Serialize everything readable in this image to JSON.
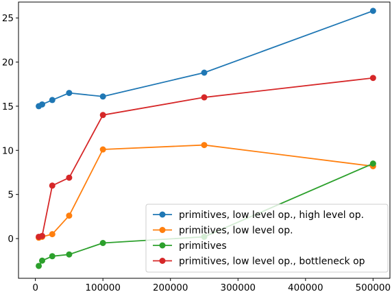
{
  "chart_data": {
    "type": "line",
    "title": "",
    "xlabel": "",
    "ylabel": "",
    "xlim": [
      -25000,
      525000
    ],
    "ylim": [
      -4.5,
      26.8
    ],
    "x_ticks": [
      0,
      100000,
      200000,
      300000,
      400000,
      500000
    ],
    "x_tick_labels": [
      "0",
      "100000",
      "200000",
      "300000",
      "400000",
      "500000"
    ],
    "y_ticks": [
      0,
      5,
      10,
      15,
      20,
      25
    ],
    "y_tick_labels": [
      "0",
      "5",
      "10",
      "15",
      "20",
      "25"
    ],
    "grid": false,
    "legend_position": "lower-right",
    "series": [
      {
        "name": "primitives, low level op., high level op.",
        "color": "#1f77b4",
        "x": [
          5000,
          10000,
          25000,
          50000,
          100000,
          250000,
          500000
        ],
        "y": [
          15.0,
          15.2,
          15.7,
          16.5,
          16.1,
          18.8,
          25.8
        ]
      },
      {
        "name": "primitives, low level op.",
        "color": "#ff7f0e",
        "x": [
          5000,
          10000,
          25000,
          50000,
          100000,
          250000,
          500000
        ],
        "y": [
          0.1,
          0.2,
          0.5,
          2.6,
          10.1,
          10.6,
          8.2
        ]
      },
      {
        "name": "primitives",
        "color": "#2ca02c",
        "x": [
          5000,
          10000,
          25000,
          50000,
          100000,
          250000,
          500000
        ],
        "y": [
          -3.1,
          -2.5,
          -2.0,
          -1.8,
          -0.5,
          0.2,
          8.5
        ]
      },
      {
        "name": "primitives, low level op., bottleneck op",
        "color": "#d62728",
        "x": [
          5000,
          10000,
          25000,
          50000,
          100000,
          250000,
          500000
        ],
        "y": [
          0.2,
          0.3,
          6.0,
          6.9,
          14.0,
          16.0,
          18.2
        ]
      }
    ]
  }
}
